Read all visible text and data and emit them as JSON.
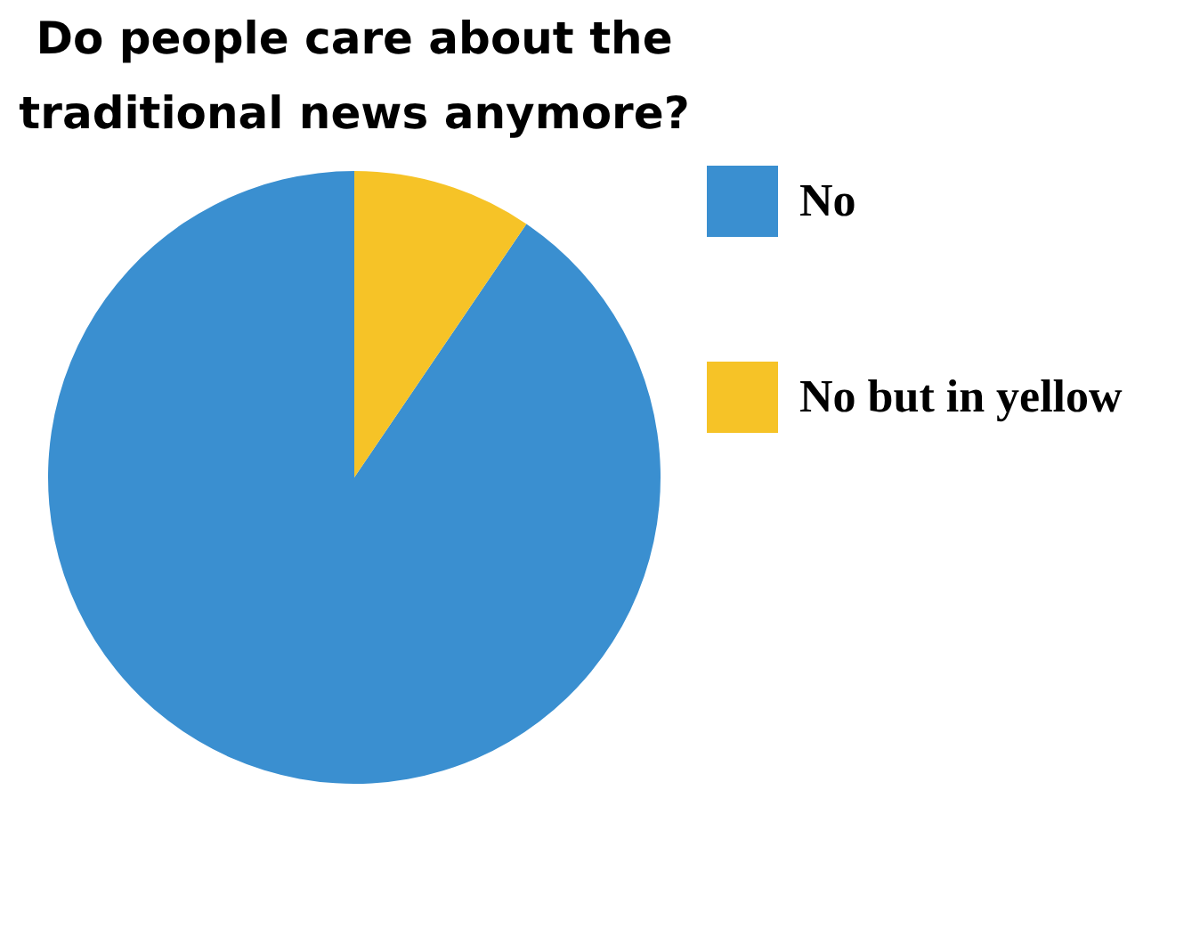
{
  "chart_data": {
    "type": "pie",
    "title": "Do people care about the traditional news anymore?",
    "categories": [
      "No",
      "No but in yellow"
    ],
    "values": [
      90.5,
      9.5
    ],
    "colors": [
      "#3a8fd0",
      "#f6c327"
    ],
    "legend": "right"
  }
}
